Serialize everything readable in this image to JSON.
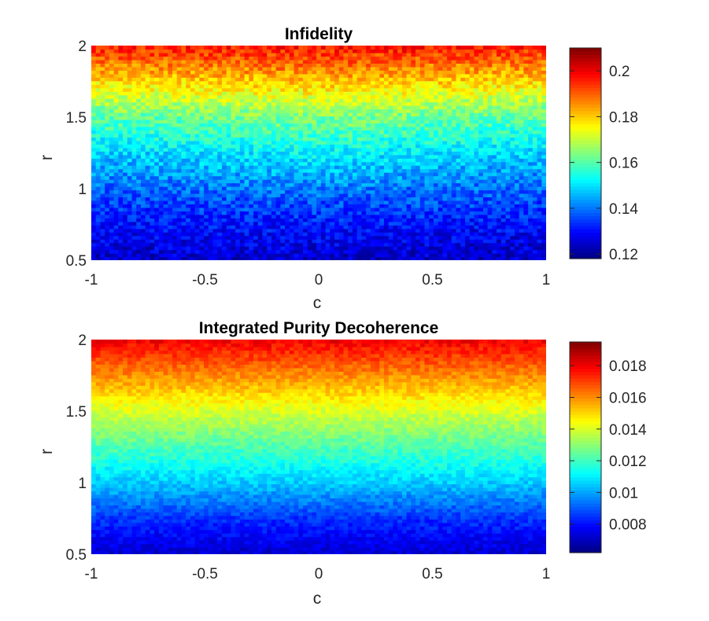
{
  "chart_data": [
    {
      "type": "heatmap",
      "title": "Infidelity",
      "xlabel": "c",
      "ylabel": "r",
      "xlim": [
        -1,
        1
      ],
      "ylim": [
        0.5,
        2
      ],
      "x_ticks": [
        -1,
        -0.5,
        0,
        0.5,
        1
      ],
      "x_tick_labels": [
        "-1",
        "-0.5",
        "0",
        "0.5",
        "1"
      ],
      "y_ticks": [
        0.5,
        1,
        1.5,
        2
      ],
      "y_tick_labels": [
        "0.5",
        "1",
        "1.5",
        "2"
      ],
      "grid": false,
      "colormap": "jet",
      "grid_size": {
        "cols": 101,
        "rows": 61
      },
      "value_model": {
        "description_of_trend": "value increases with r; slightly higher near c=0 at mid r; noisy",
        "r_profile": [
          [
            0.5,
            0.124
          ],
          [
            0.75,
            0.13
          ],
          [
            1.0,
            0.138
          ],
          [
            1.25,
            0.148
          ],
          [
            1.5,
            0.16
          ],
          [
            1.75,
            0.178
          ],
          [
            2.0,
            0.196
          ]
        ],
        "noise_amplitude": 0.006
      },
      "clim": [
        0.118,
        0.21
      ],
      "colorbar": {
        "ticks": [
          0.12,
          0.14,
          0.16,
          0.18,
          0.2
        ],
        "tick_labels": [
          "0.12",
          "0.14",
          "0.16",
          "0.18",
          "0.2"
        ],
        "placement": "right"
      }
    },
    {
      "type": "heatmap",
      "title": "Integrated Purity Decoherence",
      "xlabel": "c",
      "ylabel": "r",
      "xlim": [
        -1,
        1
      ],
      "ylim": [
        0.5,
        2
      ],
      "x_ticks": [
        -1,
        -0.5,
        0,
        0.5,
        1
      ],
      "x_tick_labels": [
        "-1",
        "-0.5",
        "0",
        "0.5",
        "1"
      ],
      "y_ticks": [
        0.5,
        1,
        1.5,
        2
      ],
      "y_tick_labels": [
        "0.5",
        "1",
        "1.5",
        "2"
      ],
      "grid": false,
      "colormap": "jet",
      "grid_size": {
        "cols": 101,
        "rows": 61
      },
      "value_model": {
        "description_of_trend": "value increases smoothly with r; noisy",
        "r_profile": [
          [
            0.5,
            0.0072
          ],
          [
            0.75,
            0.0085
          ],
          [
            1.0,
            0.0105
          ],
          [
            1.25,
            0.0122
          ],
          [
            1.5,
            0.014
          ],
          [
            1.75,
            0.016
          ],
          [
            2.0,
            0.018
          ]
        ],
        "noise_amplitude": 0.0005
      },
      "clim": [
        0.0062,
        0.0195
      ],
      "colorbar": {
        "ticks": [
          0.008,
          0.01,
          0.012,
          0.014,
          0.016,
          0.018
        ],
        "tick_labels": [
          "0.008",
          "0.01",
          "0.012",
          "0.014",
          "0.016",
          "0.018"
        ],
        "placement": "right"
      }
    }
  ]
}
